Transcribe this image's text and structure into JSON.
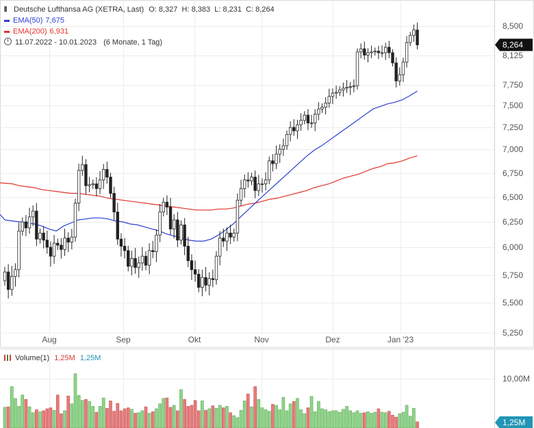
{
  "header": {
    "title": "Deutsche Lufthansa AG (XETRA, Last)",
    "ohlc": "O: 8,327  H: 8,383  L: 8,231  C: 8,264",
    "ema50_label": "EMA(50)",
    "ema50_value": "7,675",
    "ema200_label": "EMA(200)",
    "ema200_value": "6,931",
    "range": "11.07.2022 - 10.01.2023",
    "period": "(6 Monate, 1 Tag)"
  },
  "volume_legend": {
    "label": "Volume(1)",
    "v1": "1,25M",
    "v2": "1,25M"
  },
  "last_price_tag": "8,264",
  "last_volume_tag": "1,25M",
  "volume_axis_label": "10,00M",
  "colors": {
    "up": "#2f8f2f",
    "down": "#d63a3a",
    "ema50": "#2a3fd0",
    "ema200": "#e0342c",
    "tag_price": "#111111",
    "tag_volume": "#2196b6",
    "vol_up": "#8fd48a",
    "vol_down": "#e77b7b"
  },
  "chart_data": {
    "type": "candlestick",
    "y_ticks": [
      "8,500",
      "8,125",
      "7,750",
      "7,500",
      "7,250",
      "7,000",
      "6,750",
      "6,500",
      "6,250",
      "6,000",
      "5,750",
      "5,500",
      "5,250"
    ],
    "x_ticks": [
      "Aug",
      "Sep",
      "Okt",
      "Nov",
      "Dez",
      "Jan '23"
    ],
    "ylim": [
      5.2,
      8.6
    ],
    "close": [
      5.78,
      5.62,
      5.74,
      5.8,
      6.16,
      6.25,
      6.19,
      6.3,
      6.36,
      6.08,
      6.14,
      6.07,
      6.0,
      5.92,
      6.04,
      6.02,
      5.98,
      6.09,
      6.05,
      6.1,
      6.44,
      6.78,
      6.84,
      6.62,
      6.63,
      6.64,
      6.59,
      6.68,
      6.79,
      6.71,
      6.54,
      6.35,
      6.08,
      6.01,
      5.97,
      5.83,
      5.9,
      5.82,
      5.86,
      5.92,
      5.84,
      5.97,
      5.96,
      6.12,
      6.35,
      6.45,
      6.4,
      6.18,
      6.27,
      6.07,
      6.22,
      6.01,
      5.88,
      5.8,
      5.76,
      5.64,
      5.73,
      5.66,
      5.72,
      5.71,
      5.92,
      6.09,
      6.06,
      6.14,
      6.1,
      6.14,
      6.47,
      6.59,
      6.68,
      6.67,
      6.71,
      6.57,
      6.64,
      6.64,
      6.68,
      6.88,
      6.85,
      6.95,
      7.0,
      7.04,
      7.17,
      7.25,
      7.21,
      7.28,
      7.33,
      7.39,
      7.3,
      7.3,
      7.4,
      7.46,
      7.48,
      7.53,
      7.61,
      7.65,
      7.66,
      7.69,
      7.71,
      7.72,
      7.73,
      7.74,
      8.17,
      8.21,
      8.13,
      8.16,
      8.17,
      8.18,
      8.16,
      8.16,
      8.23,
      8.16,
      8.03,
      7.8,
      7.88,
      8.04,
      8.29,
      8.38,
      8.45,
      8.26
    ],
    "ema50": [
      6.27,
      6.26,
      6.25,
      6.24,
      6.23,
      6.21,
      6.18,
      6.16,
      6.21,
      6.24,
      6.27,
      6.28,
      6.29,
      6.29,
      6.28,
      6.26,
      6.25,
      6.23,
      6.22,
      6.2,
      6.18,
      6.16,
      6.13,
      6.11,
      6.09,
      6.07,
      6.06,
      6.06,
      6.08,
      6.12,
      6.17,
      6.23,
      6.3,
      6.37,
      6.44,
      6.51,
      6.58,
      6.65,
      6.72,
      6.79,
      6.86,
      6.93,
      6.99,
      7.04,
      7.1,
      7.16,
      7.22,
      7.28,
      7.34,
      7.4,
      7.46,
      7.49,
      7.52,
      7.54,
      7.57,
      7.62,
      7.675
    ],
    "ema200": [
      6.65,
      6.64,
      6.62,
      6.61,
      6.6,
      6.58,
      6.57,
      6.56,
      6.55,
      6.54,
      6.54,
      6.53,
      6.52,
      6.51,
      6.49,
      6.48,
      6.47,
      6.46,
      6.45,
      6.44,
      6.43,
      6.42,
      6.41,
      6.4,
      6.39,
      6.38,
      6.37,
      6.37,
      6.37,
      6.38,
      6.38,
      6.39,
      6.41,
      6.43,
      6.44,
      6.46,
      6.48,
      6.49,
      6.51,
      6.53,
      6.55,
      6.57,
      6.6,
      6.62,
      6.64,
      6.67,
      6.7,
      6.72,
      6.74,
      6.77,
      6.8,
      6.82,
      6.85,
      6.86,
      6.88,
      6.91,
      6.931
    ],
    "volume_ylim": [
      0,
      15
    ],
    "volume": [
      4.2,
      4.3,
      8.4,
      6.0,
      4.4,
      6.7,
      5.8,
      4.3,
      3.1,
      3.7,
      3.3,
      3.5,
      3.9,
      4.1,
      3.6,
      6.7,
      2.9,
      3.5,
      6.5,
      4.9,
      11.0,
      6.6,
      5.6,
      5.8,
      5.4,
      4.4,
      3.2,
      4.4,
      6.1,
      4.0,
      5.5,
      3.4,
      5.0,
      3.5,
      3.9,
      4.1,
      3.8,
      3.0,
      3.1,
      3.5,
      4.3,
      3.0,
      3.3,
      3.9,
      4.9,
      6.0,
      6.1,
      4.2,
      4.6,
      3.5,
      7.8,
      5.8,
      4.4,
      4.6,
      5.6,
      3.5,
      5.5,
      3.6,
      3.9,
      4.5,
      4.0,
      4.6,
      4.1,
      4.4,
      3.1,
      2.5,
      2.1,
      3.6,
      5.5,
      6.9,
      4.3,
      8.4,
      5.8,
      4.1,
      3.7,
      3.4,
      4.8,
      4.6,
      3.7,
      6.2,
      3.5,
      4.9,
      5.4,
      6.0,
      3.7,
      2.9,
      4.1,
      6.4,
      3.3,
      5.4,
      3.9,
      3.7,
      3.3,
      3.5,
      3.5,
      3.2,
      3.8,
      4.4,
      3.5,
      3.1,
      3.5,
      3.0,
      3.1,
      3.3,
      3.0,
      3.2,
      3.9,
      3.2,
      3.1,
      3.4,
      2.6,
      2.2,
      2.9,
      3.2,
      4.6,
      2.4,
      4.0,
      1.25
    ]
  }
}
